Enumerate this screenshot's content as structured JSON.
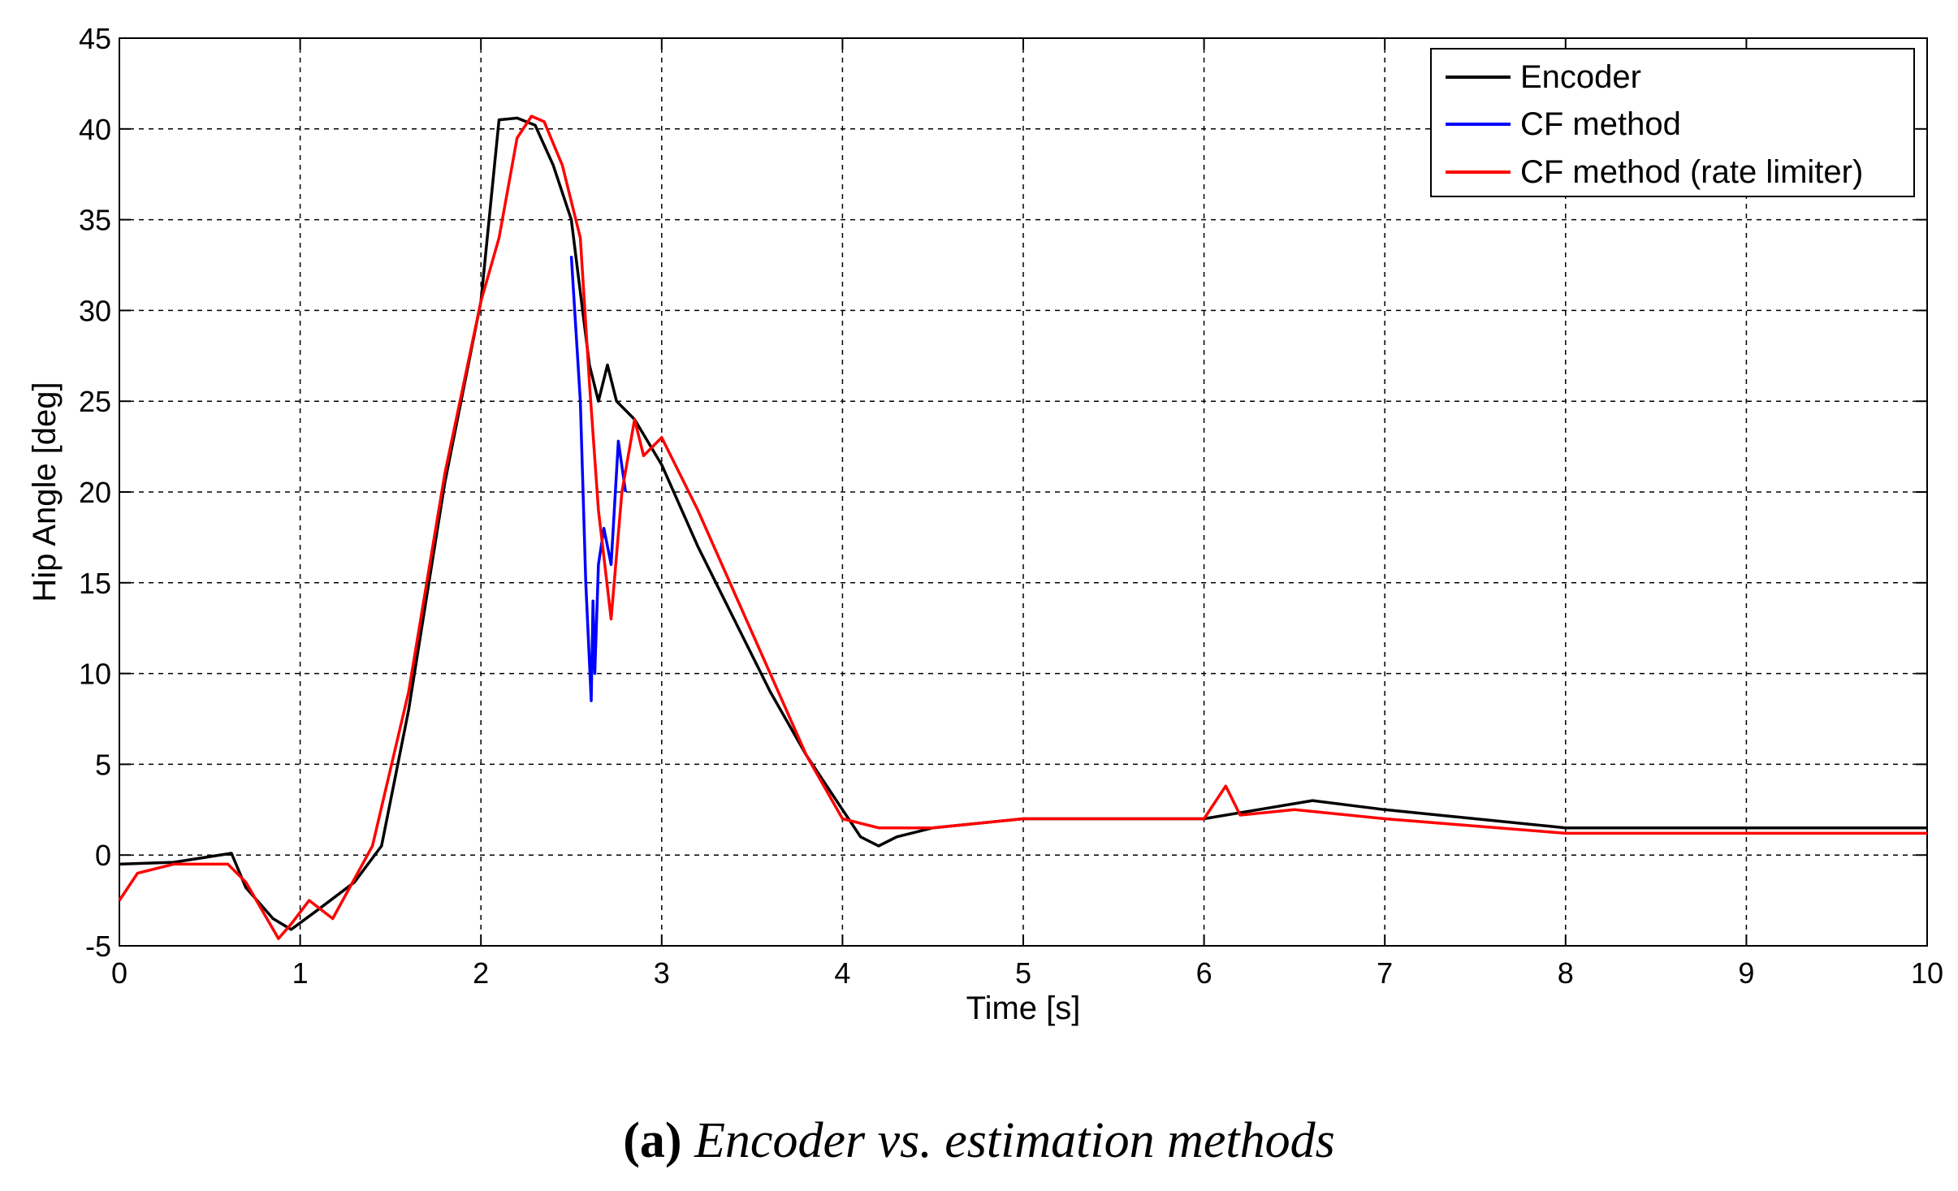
{
  "chart_data": {
    "type": "line",
    "title": "",
    "xlabel": "Time [s]",
    "ylabel": "Hip Angle [deg]",
    "xlim": [
      0,
      10
    ],
    "ylim": [
      -5,
      45
    ],
    "xticks": [
      0,
      1,
      2,
      3,
      4,
      5,
      6,
      7,
      8,
      9,
      10
    ],
    "yticks": [
      -5,
      0,
      5,
      10,
      15,
      20,
      25,
      30,
      35,
      40,
      45
    ],
    "grid": true,
    "legend_position": "top-right",
    "series": [
      {
        "name": "Encoder",
        "color": "#000000",
        "x": [
          0,
          0.3,
          0.62,
          0.7,
          0.85,
          0.95,
          1.1,
          1.3,
          1.45,
          1.6,
          1.8,
          2.0,
          2.1,
          2.2,
          2.3,
          2.4,
          2.5,
          2.55,
          2.6,
          2.65,
          2.7,
          2.75,
          2.85,
          3.0,
          3.2,
          3.4,
          3.6,
          3.8,
          4.0,
          4.1,
          4.2,
          4.3,
          4.5,
          5.0,
          5.5,
          6.0,
          6.3,
          6.6,
          7.0,
          7.5,
          8.0,
          9.0,
          10.0
        ],
        "y": [
          -0.5,
          -0.4,
          0.1,
          -1.8,
          -3.5,
          -4.1,
          -3.0,
          -1.5,
          0.5,
          8.0,
          20.5,
          30.5,
          40.5,
          40.6,
          40.2,
          38.0,
          35.0,
          31.0,
          27.0,
          25.0,
          27.0,
          25.0,
          24.0,
          21.5,
          17.0,
          13.0,
          9.0,
          5.5,
          2.5,
          1.0,
          0.5,
          1.0,
          1.5,
          2.0,
          2.0,
          2.0,
          2.5,
          3.0,
          2.5,
          2.0,
          1.5,
          1.5,
          1.5
        ]
      },
      {
        "name": "CF method",
        "color": "#0000ff",
        "x": [
          2.5,
          2.55,
          2.58,
          2.61,
          2.62,
          2.63,
          2.65,
          2.68,
          2.72,
          2.76,
          2.8
        ],
        "y": [
          33.0,
          25.0,
          15.0,
          8.5,
          14.0,
          10.0,
          16.0,
          18.0,
          16.0,
          22.8,
          20.0
        ]
      },
      {
        "name": "CF method (rate limiter)",
        "color": "#ff0000",
        "x": [
          0,
          0.1,
          0.3,
          0.6,
          0.7,
          0.88,
          0.95,
          1.05,
          1.18,
          1.4,
          1.6,
          1.8,
          2.0,
          2.1,
          2.2,
          2.28,
          2.35,
          2.45,
          2.55,
          2.6,
          2.65,
          2.72,
          2.78,
          2.85,
          2.9,
          3.0,
          3.2,
          3.4,
          3.6,
          3.8,
          4.0,
          4.2,
          4.5,
          5.0,
          5.5,
          6.0,
          6.12,
          6.2,
          6.5,
          7.0,
          8.0,
          9.0,
          10.0
        ],
        "y": [
          -2.5,
          -1.0,
          -0.5,
          -0.5,
          -1.5,
          -4.6,
          -3.8,
          -2.5,
          -3.5,
          0.5,
          9.0,
          21.0,
          30.5,
          34.0,
          39.5,
          40.7,
          40.4,
          38.0,
          34.0,
          26.0,
          19.0,
          13.0,
          20.0,
          24.0,
          22.0,
          23.0,
          19.0,
          14.5,
          10.0,
          5.5,
          2.0,
          1.5,
          1.5,
          2.0,
          2.0,
          2.0,
          3.8,
          2.2,
          2.5,
          2.0,
          1.2,
          1.2,
          1.2
        ]
      }
    ]
  },
  "caption": {
    "letter": "(a)",
    "text": "Encoder vs. estimation methods"
  }
}
